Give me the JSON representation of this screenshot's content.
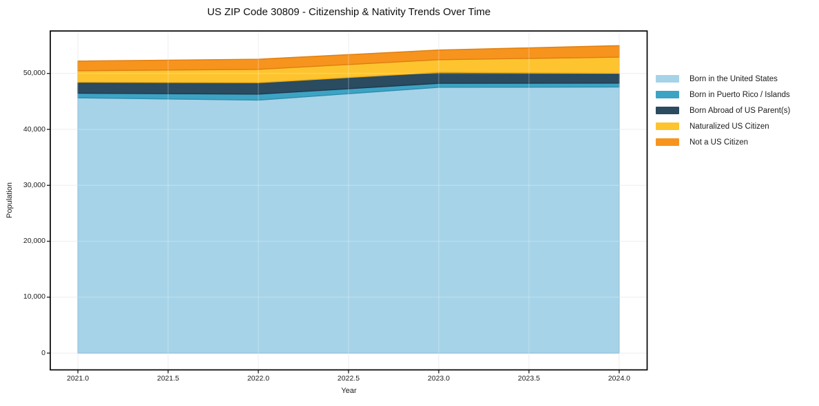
{
  "chart_data": {
    "type": "area",
    "stacked": true,
    "title": "US ZIP Code 30809 - Citizenship & Nativity Trends Over Time",
    "xlabel": "Year",
    "ylabel": "Population",
    "x": [
      2021,
      2022,
      2023,
      2024
    ],
    "series": [
      {
        "name": "Born in the United States",
        "color": "#A6D3E8",
        "edge": "#7EB9D6",
        "values": [
          45650,
          45240,
          47530,
          47580
        ]
      },
      {
        "name": "Born in Puerto Rico / Islands",
        "color": "#3DA3C4",
        "edge": "#2F8EAD",
        "values": [
          820,
          1060,
          710,
          690
        ]
      },
      {
        "name": "Born Abroad of US Parent(s)",
        "color": "#2A4B60",
        "edge": "#1E3A4C",
        "values": [
          1970,
          2060,
          1970,
          1780
        ]
      },
      {
        "name": "Naturalized US Citizen",
        "color": "#FDC42F",
        "edge": "#EFAC14",
        "values": [
          2050,
          2380,
          2250,
          2870
        ]
      },
      {
        "name": "Not a US Citizen",
        "color": "#F7941E",
        "edge": "#DE7E10",
        "values": [
          1730,
          1810,
          1730,
          2060
        ]
      }
    ],
    "totals": [
      52220,
      52550,
      54190,
      54980
    ],
    "xlim": [
      2020.847,
      2024.155
    ],
    "ylim": [
      -3000,
      57600
    ],
    "xticks": [
      {
        "value": 2021.0,
        "label": "2021.0"
      },
      {
        "value": 2021.5,
        "label": "2021.5"
      },
      {
        "value": 2022.0,
        "label": "2022.0"
      },
      {
        "value": 2022.5,
        "label": "2022.5"
      },
      {
        "value": 2023.0,
        "label": "2023.0"
      },
      {
        "value": 2023.5,
        "label": "2023.5"
      },
      {
        "value": 2024.0,
        "label": "2024.0"
      }
    ],
    "yticks": [
      {
        "value": 0,
        "label": "0"
      },
      {
        "value": 10000,
        "label": "10,000"
      },
      {
        "value": 20000,
        "label": "20,000"
      },
      {
        "value": 30000,
        "label": "30,000"
      },
      {
        "value": 40000,
        "label": "40,000"
      },
      {
        "value": 50000,
        "label": "50,000"
      }
    ],
    "grid": true,
    "grid_color": "#E6E6E6",
    "spine_color": "#000000",
    "legend_position": "right-outside"
  }
}
